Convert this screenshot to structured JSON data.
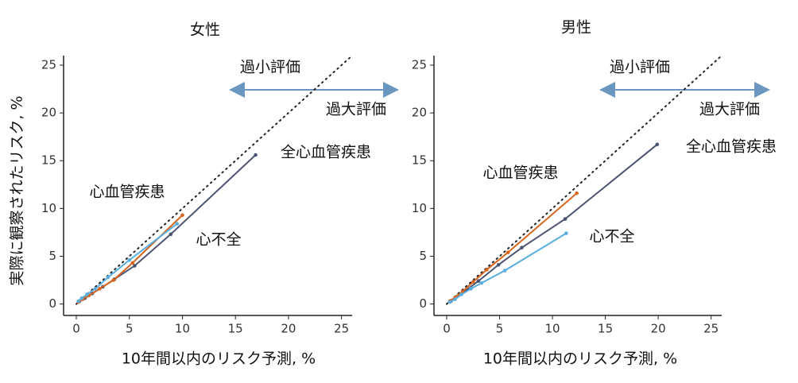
{
  "chart_data": [
    {
      "type": "line",
      "title": "女性",
      "xlabel": "10年間以内のリスク予測, %",
      "ylabel": "実際に観察されたリスク, %",
      "xlim": [
        -1.2,
        26
      ],
      "ylim": [
        -1.2,
        26
      ],
      "xticks": [
        0,
        5,
        10,
        15,
        20,
        25
      ],
      "yticks": [
        0,
        5,
        10,
        15,
        20,
        25
      ],
      "annotations": [
        "過小評価",
        "過大評価"
      ],
      "series": [
        {
          "name": "全心血管疾患",
          "color": "#4b5573",
          "x": [
            0.3,
            0.8,
            1.5,
            2.5,
            3.6,
            5.5,
            8.9,
            16.9
          ],
          "values": [
            0.3,
            0.6,
            1.1,
            1.8,
            2.6,
            4.0,
            7.3,
            15.6
          ]
        },
        {
          "name": "心血管疾患",
          "color": "#d9661f",
          "x": [
            0.2,
            0.6,
            1.2,
            2.2,
            3.5,
            5.3,
            10.0
          ],
          "values": [
            0.2,
            0.5,
            0.9,
            1.6,
            2.5,
            4.3,
            9.3
          ]
        },
        {
          "name": "心不全",
          "color": "#5aaee0",
          "x": [
            0.2,
            0.5,
            1.0,
            1.8,
            3.0,
            5.0,
            9.5
          ],
          "values": [
            0.3,
            0.6,
            1.0,
            1.6,
            2.8,
            4.6,
            8.4
          ]
        }
      ]
    },
    {
      "type": "line",
      "title": "男性",
      "xlabel": "10年間以内のリスク予測, %",
      "xlim": [
        -1.2,
        26
      ],
      "ylim": [
        -1.2,
        26
      ],
      "xticks": [
        0,
        5,
        10,
        15,
        20,
        25
      ],
      "yticks": [
        0,
        5,
        10,
        15,
        20,
        25
      ],
      "annotations": [
        "過小評価",
        "過大評価"
      ],
      "series": [
        {
          "name": "全心血管疾患",
          "color": "#4b5573",
          "x": [
            0.4,
            1.0,
            1.8,
            3.0,
            4.9,
            7.1,
            11.2,
            19.9
          ],
          "values": [
            0.3,
            0.8,
            1.4,
            2.4,
            4.1,
            5.9,
            8.9,
            16.7
          ]
        },
        {
          "name": "心血管疾患",
          "color": "#d9661f",
          "x": [
            0.3,
            0.8,
            1.5,
            2.5,
            3.8,
            5.8,
            12.3
          ],
          "values": [
            0.3,
            0.7,
            1.3,
            2.3,
            3.6,
            5.4,
            11.6
          ]
        },
        {
          "name": "心不全",
          "color": "#5aaee0",
          "x": [
            0.3,
            0.8,
            1.4,
            2.3,
            3.3,
            5.5,
            11.3
          ],
          "values": [
            0.2,
            0.5,
            1.0,
            1.6,
            2.2,
            3.5,
            7.4
          ]
        }
      ]
    }
  ]
}
